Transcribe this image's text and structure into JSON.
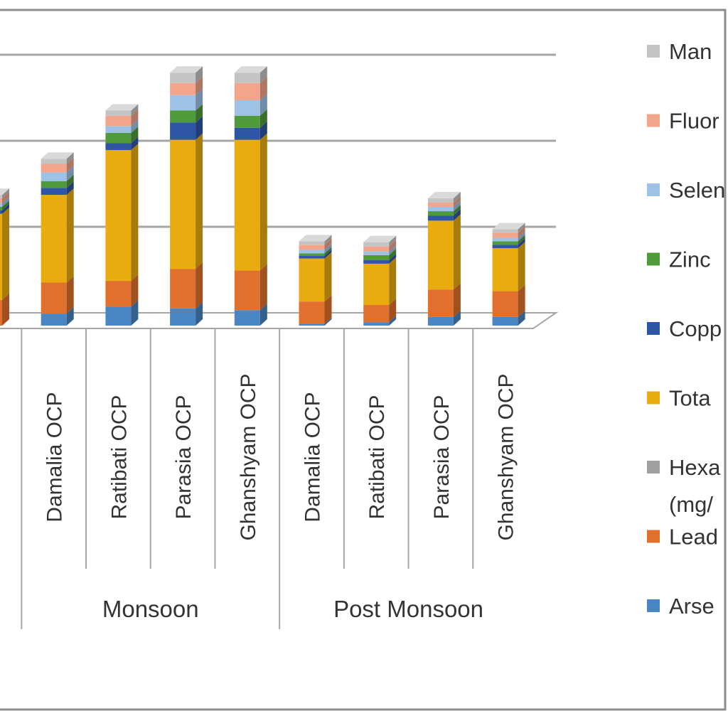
{
  "chart_data": {
    "type": "bar",
    "stacked": true,
    "three_d": true,
    "grid": true,
    "legend_position": "right",
    "groups": [
      {
        "label": "",
        "categories": [
          ""
        ]
      },
      {
        "label": "Monsoon",
        "categories": [
          "Damalia OCP",
          "Ratibati OCP",
          "Parasia OCP",
          "Ghanshyam OCP"
        ]
      },
      {
        "label": "Post Monsoon",
        "categories": [
          "Damalia OCP",
          "Ratibati OCP",
          "Parasia OCP",
          "Ghanshyam OCP"
        ]
      }
    ],
    "categories": [
      "",
      "Damalia OCP",
      "Ratibati OCP",
      "Parasia OCP",
      "Ghanshyam OCP",
      "Damalia OCP",
      "Ratibati OCP",
      "Parasia OCP",
      "Ghanshyam OCP"
    ],
    "ylim": [
      0,
      3.0
    ],
    "ytick_step": 1.0,
    "series": [
      {
        "name": "Arse",
        "color": "#4a86c3",
        "values": [
          0.0,
          0.14,
          0.22,
          0.2,
          0.18,
          0.02,
          0.04,
          0.1,
          0.1
        ]
      },
      {
        "name": "Lead",
        "color": "#e0702c",
        "values": [
          0.3,
          0.36,
          0.3,
          0.46,
          0.46,
          0.26,
          0.2,
          0.32,
          0.3
        ]
      },
      {
        "name": "Hexa (mg/",
        "color": "#a0a0a0",
        "values": [
          0.0,
          0.0,
          0.0,
          0.0,
          0.0,
          0.0,
          0.0,
          0.0,
          0.0
        ]
      },
      {
        "name": "Tota",
        "color": "#e8ac0e",
        "values": [
          1.0,
          1.02,
          1.52,
          1.5,
          1.52,
          0.5,
          0.48,
          0.8,
          0.5
        ]
      },
      {
        "name": "Copp",
        "color": "#2f55a6",
        "values": [
          0.04,
          0.08,
          0.08,
          0.2,
          0.14,
          0.03,
          0.04,
          0.06,
          0.04
        ]
      },
      {
        "name": "Zinc",
        "color": "#4f9a3a",
        "values": [
          0.04,
          0.08,
          0.12,
          0.14,
          0.14,
          0.03,
          0.06,
          0.05,
          0.04
        ]
      },
      {
        "name": "Selen",
        "color": "#9dc2e6",
        "values": [
          0.04,
          0.1,
          0.08,
          0.18,
          0.18,
          0.04,
          0.04,
          0.05,
          0.04
        ]
      },
      {
        "name": "Fluor",
        "color": "#f2a58a",
        "values": [
          0.06,
          0.1,
          0.12,
          0.14,
          0.2,
          0.06,
          0.06,
          0.05,
          0.06
        ]
      },
      {
        "name": "Man",
        "color": "#c4c4c4",
        "values": [
          0.04,
          0.06,
          0.06,
          0.12,
          0.12,
          0.04,
          0.05,
          0.05,
          0.04
        ]
      }
    ]
  }
}
